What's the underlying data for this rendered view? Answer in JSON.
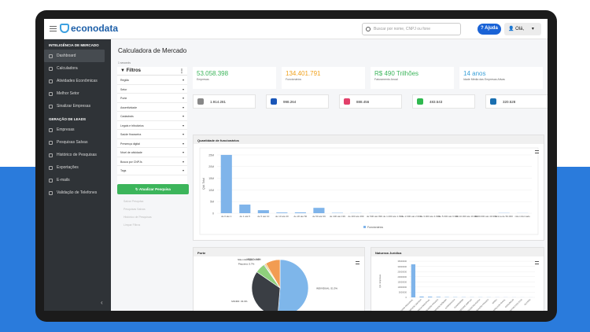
{
  "app": {
    "brand": "econodata",
    "search_placeholder": "Buscar por nome, CNPJ ou fone",
    "help_label": "Ajuda",
    "user_label": "Olá,"
  },
  "sidebar": {
    "section1": "INTELIGÊNCIA DE MERCADO",
    "items1": [
      "Dashboard",
      "Calculadora",
      "Atividades Econômicas",
      "Melhor Setor",
      "Sinalizar Empresas"
    ],
    "section2": "GERAÇÃO DE LEADS",
    "items2": [
      "Empresas",
      "Pesquisas Salvas",
      "Histórico de Pesquisas",
      "Exportações",
      "E-mails",
      "Validação de Telefones"
    ]
  },
  "page": {
    "title": "Calculadora de Mercado",
    "subtitle": "1 seconds"
  },
  "filters": {
    "title": "Filtros",
    "rows": [
      "Região",
      "Setor",
      "Porte",
      "Assertividade",
      "Cadastrais",
      "Legais e tributários",
      "Saúde financeira",
      "Presença digital",
      "Nível de atividade",
      "Busca por CNPJs",
      "Tags"
    ],
    "update_button": "Atualizar Pesquisa",
    "links": [
      "Salvar Pesquisa",
      "Pesquisas Salvas",
      "Histórico de Pesquisas",
      "Limpar Filtros"
    ]
  },
  "kpis": [
    {
      "value": "53.058.398",
      "label": "Empresas",
      "color": "#3cb55b"
    },
    {
      "value": "134.401.791",
      "label": "Funcionários",
      "color": "#f0a11c"
    },
    {
      "value": "R$ 490 Trilhões",
      "label": "Faturamento Anual",
      "color": "#3cb55b"
    },
    {
      "value": "14 anos",
      "label": "Idade Média das Empresas Ativas",
      "color": "#3aa0d8"
    }
  ],
  "social": [
    {
      "value": "1.914.281",
      "icon": "globe-icon",
      "color": "#888888"
    },
    {
      "value": "998.264",
      "icon": "facebook-icon",
      "color": "#1a56b8"
    },
    {
      "value": "888.456",
      "icon": "instagram-icon",
      "color": "#e2406a"
    },
    {
      "value": "483.543",
      "icon": "whatsapp-icon",
      "color": "#2fb84f"
    },
    {
      "value": "320.528",
      "icon": "linkedin-icon",
      "color": "#1a6fb0"
    }
  ],
  "charts": {
    "employees_title": "Quantidade de funcionários",
    "size_title": "Porte",
    "legal_title": "Natureza Jurídica"
  },
  "chart_data": [
    {
      "type": "bar",
      "title": "Quantidade de funcionários",
      "ylabel": "Qtd. Total",
      "series": [
        {
          "name": "Funcionários",
          "values": [
            25000000,
            3700000,
            1300000,
            300000,
            350000,
            2300000,
            150000,
            80000,
            50000,
            30000,
            20000,
            15000,
            10000,
            8000,
            5000,
            100000,
            50000
          ]
        }
      ],
      "categories": [
        "de 0 até 1",
        "de 1 até 5",
        "de 5 até 10",
        "de 10 até 20",
        "de 20 até 50",
        "de 50 até 99",
        "de 100 até 199",
        "de 200 até 499",
        "de 500 até 999",
        "de 1.000 até 1.999",
        "de 2.000 até 2.999",
        "de 3.000 até 4.999",
        "de 5.000 até 9.999",
        "de 10.000 até 19.999",
        "de 20.000 até 49.999",
        "acima de 50.000",
        "não informado"
      ],
      "ylim": [
        0,
        27000000
      ],
      "yticks": [
        "0",
        "5M",
        "10M",
        "15M",
        "20M",
        "25M"
      ],
      "legend": "bottom"
    },
    {
      "type": "pie",
      "title": "Porte",
      "slices": [
        {
          "label": "INDIVIDUAL",
          "value": 51.3,
          "color": "#7eb6ea"
        },
        {
          "label": "MICRO",
          "value": 33.3,
          "color": "#3a3e44"
        },
        {
          "label": "Pequena",
          "value": 5.7,
          "color": "#8fd07c"
        },
        {
          "label": "Não informado",
          "value": 0.5,
          "color": "#a27fd6"
        },
        {
          "label": "MEDIO",
          "value": 0.8,
          "color": "#e4d05b"
        },
        {
          "label": "GRANDE",
          "value": 8.4,
          "color": "#f29c52"
        }
      ]
    },
    {
      "type": "bar",
      "title": "Natureza Jurídica",
      "ylabel": "Qtd. Empresas",
      "series": [
        {
          "name": "Empresas",
          "values": [
            32000000,
            800000,
            700000,
            500000,
            300000,
            250000,
            200000,
            150000,
            150000,
            120000,
            100000,
            100000,
            80000,
            60000,
            40000
          ]
        }
      ],
      "categories": [
        "EMPRESARIO INDIVIDUAL",
        "SOCIEDADE LIMITADA",
        "EMPRESA INDIVIDUAL",
        "ASSOCIAÇÃO PRIVADA",
        "SOCIEDADE ANÔNIMA",
        "COOPERATIVA",
        "CONDOMÍNIO",
        "SOCIEDADE SIMPLES",
        "ORGANIZAÇÃO RELIGIOSA",
        "FUNDAÇÃO PRIVADA",
        "EIRELI",
        "PRODUTOR RURAL",
        "CONSÓRCIO",
        "PARTIDO POLÍTICO",
        "OUTROS"
      ],
      "ylim": [
        0,
        35000000
      ],
      "yticks": [
        "0",
        "5000000",
        "10000000",
        "15000000",
        "20000000",
        "25000000",
        "30000000",
        "35000000"
      ]
    }
  ]
}
